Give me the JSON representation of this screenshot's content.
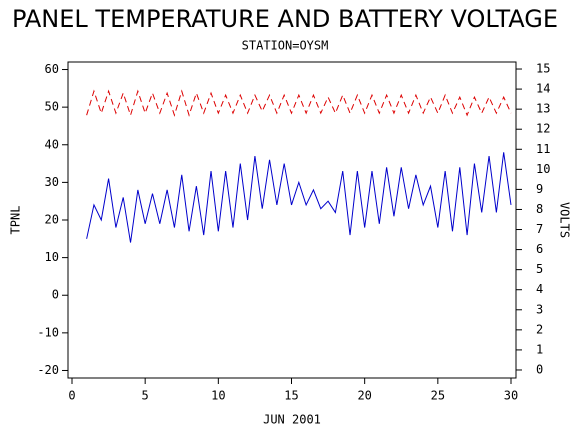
{
  "chart_data": {
    "type": "line",
    "title": "PANEL TEMPERATURE AND BATTERY VOLTAGE",
    "subtitle": "STATION=OYSM",
    "x_label": "JUN 2001",
    "y_label": "TPNL",
    "y2_label": "VOLTS",
    "x": [
      1,
      1.5,
      2,
      2.5,
      3,
      3.5,
      4,
      4.5,
      5,
      5.5,
      6,
      6.5,
      7,
      7.5,
      8,
      8.5,
      9,
      9.5,
      10,
      10.5,
      11,
      11.5,
      12,
      12.5,
      13,
      13.5,
      14,
      14.5,
      15,
      15.5,
      16,
      16.5,
      17,
      17.5,
      18,
      18.5,
      19,
      19.5,
      20,
      20.5,
      21,
      21.5,
      22,
      22.5,
      23,
      23.5,
      24,
      24.5,
      25,
      25.5,
      26,
      26.5,
      27,
      27.5,
      28,
      28.5,
      29,
      29.5,
      30
    ],
    "series": [
      {
        "name": "TPNL",
        "color": "#0000cc",
        "axis": "y",
        "dash": false,
        "values": [
          15,
          24,
          20,
          31,
          18,
          26,
          14,
          28,
          19,
          27,
          19,
          28,
          18,
          32,
          17,
          29,
          16,
          33,
          17,
          33,
          18,
          35,
          20,
          37,
          23,
          36,
          24,
          35,
          24,
          30,
          24,
          28,
          23,
          25,
          22,
          33,
          16,
          33,
          18,
          33,
          19,
          34,
          21,
          34,
          23,
          32,
          24,
          29,
          18,
          33,
          17,
          34,
          16,
          35,
          22,
          37,
          22,
          38,
          24
        ]
      },
      {
        "name": "VOLTS",
        "color": "#dd0000",
        "axis": "y2",
        "dash": true,
        "values": [
          12.7,
          13.9,
          12.8,
          13.9,
          12.8,
          13.8,
          12.7,
          13.9,
          12.8,
          13.8,
          12.8,
          13.8,
          12.7,
          13.9,
          12.7,
          13.8,
          12.8,
          13.8,
          12.8,
          13.7,
          12.8,
          13.7,
          12.8,
          13.7,
          12.9,
          13.7,
          12.8,
          13.7,
          12.8,
          13.7,
          12.8,
          13.7,
          12.8,
          13.6,
          12.8,
          13.7,
          12.8,
          13.7,
          12.8,
          13.7,
          12.8,
          13.7,
          12.8,
          13.7,
          12.8,
          13.7,
          12.8,
          13.6,
          12.8,
          13.7,
          12.8,
          13.6,
          12.7,
          13.6,
          12.8,
          13.6,
          12.8,
          13.6,
          12.8
        ]
      }
    ],
    "xlim": [
      0,
      30
    ],
    "xticks": [
      0,
      5,
      10,
      15,
      20,
      25,
      30
    ],
    "ylim": [
      -22,
      62
    ],
    "yticks": [
      -20,
      -10,
      0,
      10,
      20,
      30,
      40,
      50,
      60
    ],
    "y2lim": [
      -0.4,
      15.35
    ],
    "y2ticks": [
      0,
      1,
      2,
      3,
      4,
      5,
      6,
      7,
      8,
      9,
      10,
      11,
      12,
      13,
      14,
      15
    ]
  }
}
